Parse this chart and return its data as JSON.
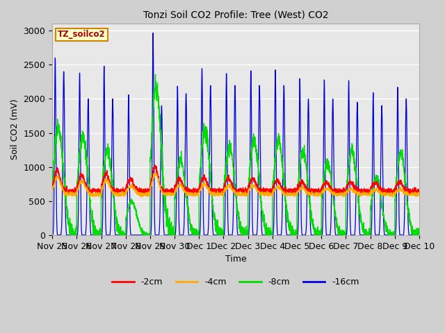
{
  "title": "Tonzi Soil CO2 Profile: Tree (West) CO2",
  "xlabel": "Time",
  "ylabel": "Soil CO2 (mV)",
  "legend_label": "TZ_soilco2",
  "ylim": [
    0,
    3100
  ],
  "total_days": 15,
  "x_tick_labels": [
    "Nov 25",
    "Nov 26",
    "Nov 27",
    "Nov 28",
    "Nov 29",
    "Nov 30",
    "Dec 1",
    "Dec 2",
    "Dec 3",
    "Dec 4",
    "Dec 5",
    "Dec 6",
    "Dec 7",
    "Dec 8",
    "Dec 9",
    "Dec 10"
  ],
  "fig_facecolor": "#d0d0d0",
  "plot_facecolor": "#e8e8e8",
  "colors": {
    "2cm": "#ff0000",
    "4cm": "#ffaa00",
    "8cm": "#00dd00",
    "16cm": "#0000dd"
  },
  "legend_items": [
    "-2cm",
    "-4cm",
    "-8cm",
    "-16cm"
  ],
  "legend_colors": [
    "#ff0000",
    "#ffaa00",
    "#00dd00",
    "#0000dd"
  ],
  "blue_peaks": [
    2600,
    2380,
    2480,
    2060,
    2970,
    2190,
    2450,
    2380,
    2420,
    2430,
    2300,
    2280,
    2270,
    2090,
    2170
  ],
  "blue_second_peaks": [
    2400,
    2000,
    2000,
    0,
    1900,
    2080,
    2200,
    2200,
    2200,
    2200,
    2000,
    2000,
    1950,
    1900,
    2000
  ],
  "green_peaks": [
    1600,
    1470,
    1250,
    500,
    2200,
    1100,
    1540,
    1300,
    1390,
    1400,
    1220,
    1070,
    1250,
    850,
    1200
  ],
  "red_base": [
    950,
    880,
    900,
    820,
    1000,
    830,
    850,
    830,
    830,
    800,
    780,
    770,
    780,
    760,
    780
  ],
  "orange_base": [
    850,
    790,
    810,
    720,
    900,
    740,
    745,
    730,
    730,
    710,
    695,
    680,
    680,
    665,
    675
  ]
}
